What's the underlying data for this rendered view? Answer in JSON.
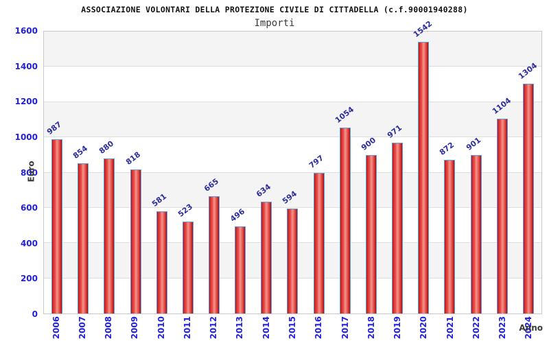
{
  "chart_data": {
    "type": "bar",
    "title": "ASSOCIAZIONE VOLONTARI DELLA PROTEZIONE CIVILE DI CITTADELLA (c.f.90001940288)",
    "subtitle": "Importi",
    "xlabel": "Anno",
    "ylabel": "Euro",
    "categories": [
      "2006",
      "2007",
      "2008",
      "2009",
      "2010",
      "2011",
      "2012",
      "2013",
      "2014",
      "2015",
      "2016",
      "2017",
      "2018",
      "2019",
      "2020",
      "2021",
      "2022",
      "2023",
      "2024"
    ],
    "values": [
      987,
      854,
      880,
      818,
      581,
      523,
      665,
      496,
      634,
      594,
      797,
      1054,
      900,
      971,
      1542,
      872,
      901,
      1104,
      1304
    ],
    "ylim": [
      0,
      1600
    ],
    "ytick_step": 200,
    "yticks": [
      0,
      200,
      400,
      600,
      800,
      1000,
      1200,
      1400,
      1600
    ],
    "grid": true,
    "legend_position": "none",
    "colors": {
      "bar_fill_main": "#e23b3b",
      "bar_fill_highlight": "#f2948c",
      "bar_border": "#5e9fe0",
      "value_label": "#2d2d9e",
      "tick_label": "#2121dd",
      "band_gray": "#f4f4f4",
      "band_white": "#ffffff",
      "title_color": "#111111"
    }
  }
}
